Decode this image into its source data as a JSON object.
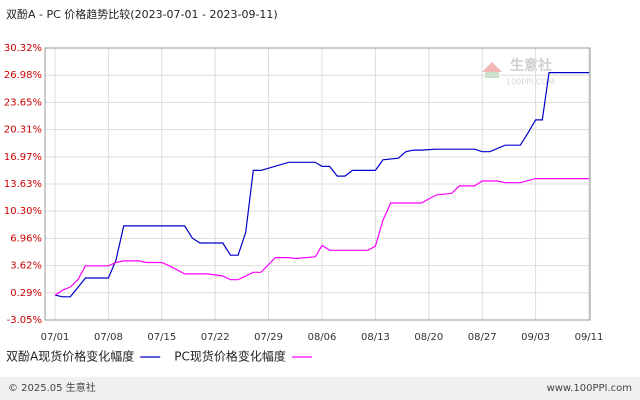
{
  "chart_data": {
    "type": "line",
    "title": "双酚A - PC 价格趋势比较(2023-07-01 - 2023-09-11)",
    "watermark": [
      "生意社",
      "100PPI.COM"
    ],
    "footer_left": "© 2025.05 生意社",
    "footer_right": "www.100PPI.com",
    "ylim": [
      -3.05,
      30.32
    ],
    "yticks": [
      {
        "value": -3.05,
        "label": "-3.05%"
      },
      {
        "value": 0.29,
        "label": "0.29%"
      },
      {
        "value": 3.62,
        "label": "3.62%"
      },
      {
        "value": 6.96,
        "label": "6.96%"
      },
      {
        "value": 10.3,
        "label": "10.30%"
      },
      {
        "value": 13.63,
        "label": "13.63%"
      },
      {
        "value": 16.97,
        "label": "16.97%"
      },
      {
        "value": 20.31,
        "label": "20.31%"
      },
      {
        "value": 23.65,
        "label": "23.65%"
      },
      {
        "value": 26.98,
        "label": "26.98%"
      },
      {
        "value": 30.32,
        "label": "30.32%"
      }
    ],
    "xticks": [
      "07/01",
      "07/08",
      "07/15",
      "07/22",
      "07/29",
      "08/06",
      "08/13",
      "08/20",
      "08/27",
      "09/03",
      "09/11"
    ],
    "grid": true,
    "legend": "bottom",
    "series": [
      {
        "name": "双酚A现货价格变化幅度",
        "color": "#0000cc",
        "x": [
          "07/01",
          "07/02",
          "07/03",
          "07/05",
          "07/08",
          "07/09",
          "07/10",
          "07/18",
          "07/19",
          "07/20",
          "07/23",
          "07/24",
          "07/25",
          "07/26",
          "07/27",
          "07/28",
          "08/01",
          "08/05",
          "08/06",
          "08/07",
          "08/08",
          "08/09",
          "08/10",
          "08/13",
          "08/14",
          "08/16",
          "08/17",
          "08/18",
          "08/19",
          "08/21",
          "08/26",
          "08/27",
          "08/28",
          "08/30",
          "09/01",
          "09/02",
          "09/03",
          "09/04",
          "09/05",
          "09/11"
        ],
        "values": [
          0,
          -0.2,
          -0.2,
          2.1,
          2.1,
          4.3,
          8.5,
          8.5,
          7.0,
          6.4,
          6.4,
          4.9,
          4.9,
          7.7,
          15.3,
          15.3,
          16.3,
          16.3,
          15.8,
          15.8,
          14.6,
          14.6,
          15.3,
          15.3,
          16.6,
          16.8,
          17.6,
          17.8,
          17.8,
          17.9,
          17.9,
          17.6,
          17.6,
          18.4,
          18.4,
          19.9,
          21.5,
          21.5,
          27.3,
          27.3
        ]
      },
      {
        "name": "PC现货价格变化幅度",
        "color": "#ff00ff",
        "x": [
          "07/01",
          "07/02",
          "07/03",
          "07/04",
          "07/05",
          "07/08",
          "07/09",
          "07/10",
          "07/12",
          "07/13",
          "07/15",
          "07/16",
          "07/18",
          "07/21",
          "07/23",
          "07/24",
          "07/25",
          "07/27",
          "07/28",
          "07/30",
          "08/01",
          "08/02",
          "08/05",
          "08/06",
          "08/07",
          "08/12",
          "08/13",
          "08/14",
          "08/15",
          "08/19",
          "08/21",
          "08/23",
          "08/24",
          "08/26",
          "08/27",
          "08/29",
          "08/30",
          "09/01",
          "09/03",
          "09/11"
        ],
        "values": [
          0,
          0.6,
          1.0,
          1.9,
          3.6,
          3.6,
          4.0,
          4.2,
          4.2,
          4.0,
          4.0,
          3.6,
          2.6,
          2.6,
          2.35,
          1.9,
          1.9,
          2.8,
          2.8,
          4.6,
          4.6,
          4.5,
          4.7,
          6.1,
          5.5,
          5.5,
          6.0,
          9.2,
          11.3,
          11.3,
          12.3,
          12.5,
          13.4,
          13.4,
          14.0,
          14.0,
          13.8,
          13.8,
          14.3,
          14.3
        ]
      }
    ]
  }
}
